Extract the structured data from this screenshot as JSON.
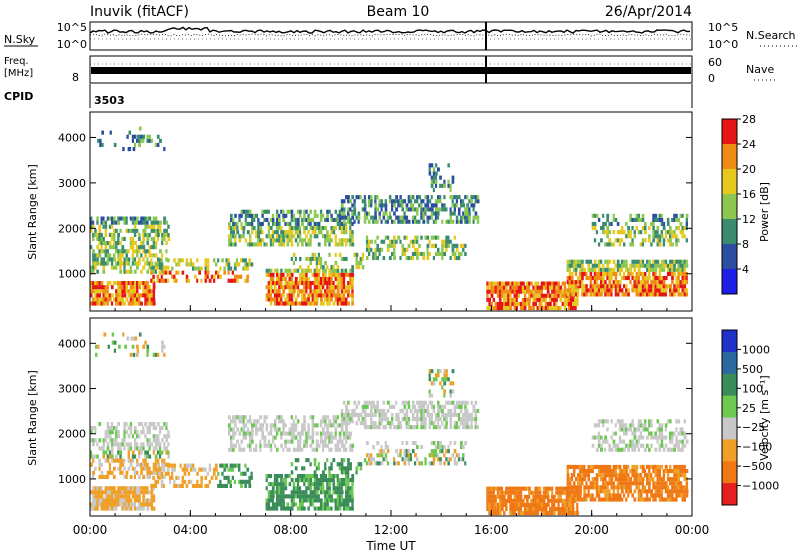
{
  "header": {
    "station": "Inuvik (fitACF)",
    "beam": "Beam 10",
    "date": "26/Apr/2014"
  },
  "top_panels": {
    "nsky_label": "N.Sky",
    "nsky_ticks": [
      "10^5",
      "10^0"
    ],
    "nsearch_label": "N.Search",
    "nsearch_ticks": [
      "10^5",
      "10^0"
    ],
    "freq_label": "Freq.",
    "freq_unit": "[MHz]",
    "freq_tick": "8",
    "nave_label": "Nave",
    "nave_ticks": [
      "60",
      "0"
    ],
    "cpid_label": "CPID",
    "cpid_value": "3503"
  },
  "chart_data": [
    {
      "type": "heatmap",
      "name": "power-panel",
      "ylabel": "Slant Range [km]",
      "yticks": [
        "1000",
        "2000",
        "3000",
        "4000"
      ],
      "ylim": [
        180,
        4560
      ],
      "xlim": [
        0,
        24
      ],
      "colorbar_label": "Power [dB]",
      "colorbar_ticks": [
        "4",
        "8",
        "12",
        "16",
        "20",
        "24",
        "28"
      ],
      "colorbar_colors": [
        "#1e1ee6",
        "#2c4ea0",
        "#3a8c6e",
        "#8cc850",
        "#e6c81e",
        "#f08c14",
        "#e61414"
      ]
    },
    {
      "type": "heatmap",
      "name": "velocity-panel",
      "ylabel": "Slant Range [km]",
      "yticks": [
        "1000",
        "2000",
        "3000",
        "4000"
      ],
      "ylim": [
        180,
        4560
      ],
      "xlim": [
        0,
        24
      ],
      "xlabel": "Time UT",
      "xticks": [
        "00:00",
        "04:00",
        "08:00",
        "12:00",
        "16:00",
        "20:00",
        "00:00"
      ],
      "colorbar_label": "Velocity [m s⁻¹]",
      "colorbar_ticks": [
        "1000",
        "500",
        "100",
        "25",
        "−25",
        "−100",
        "−500",
        "−1000"
      ],
      "colorbar_colors": [
        "#1e32c8",
        "#2a6aa0",
        "#3a8c5a",
        "#6cc850",
        "#c8c8c8",
        "#f0a028",
        "#f07814",
        "#e61e1e"
      ]
    }
  ]
}
